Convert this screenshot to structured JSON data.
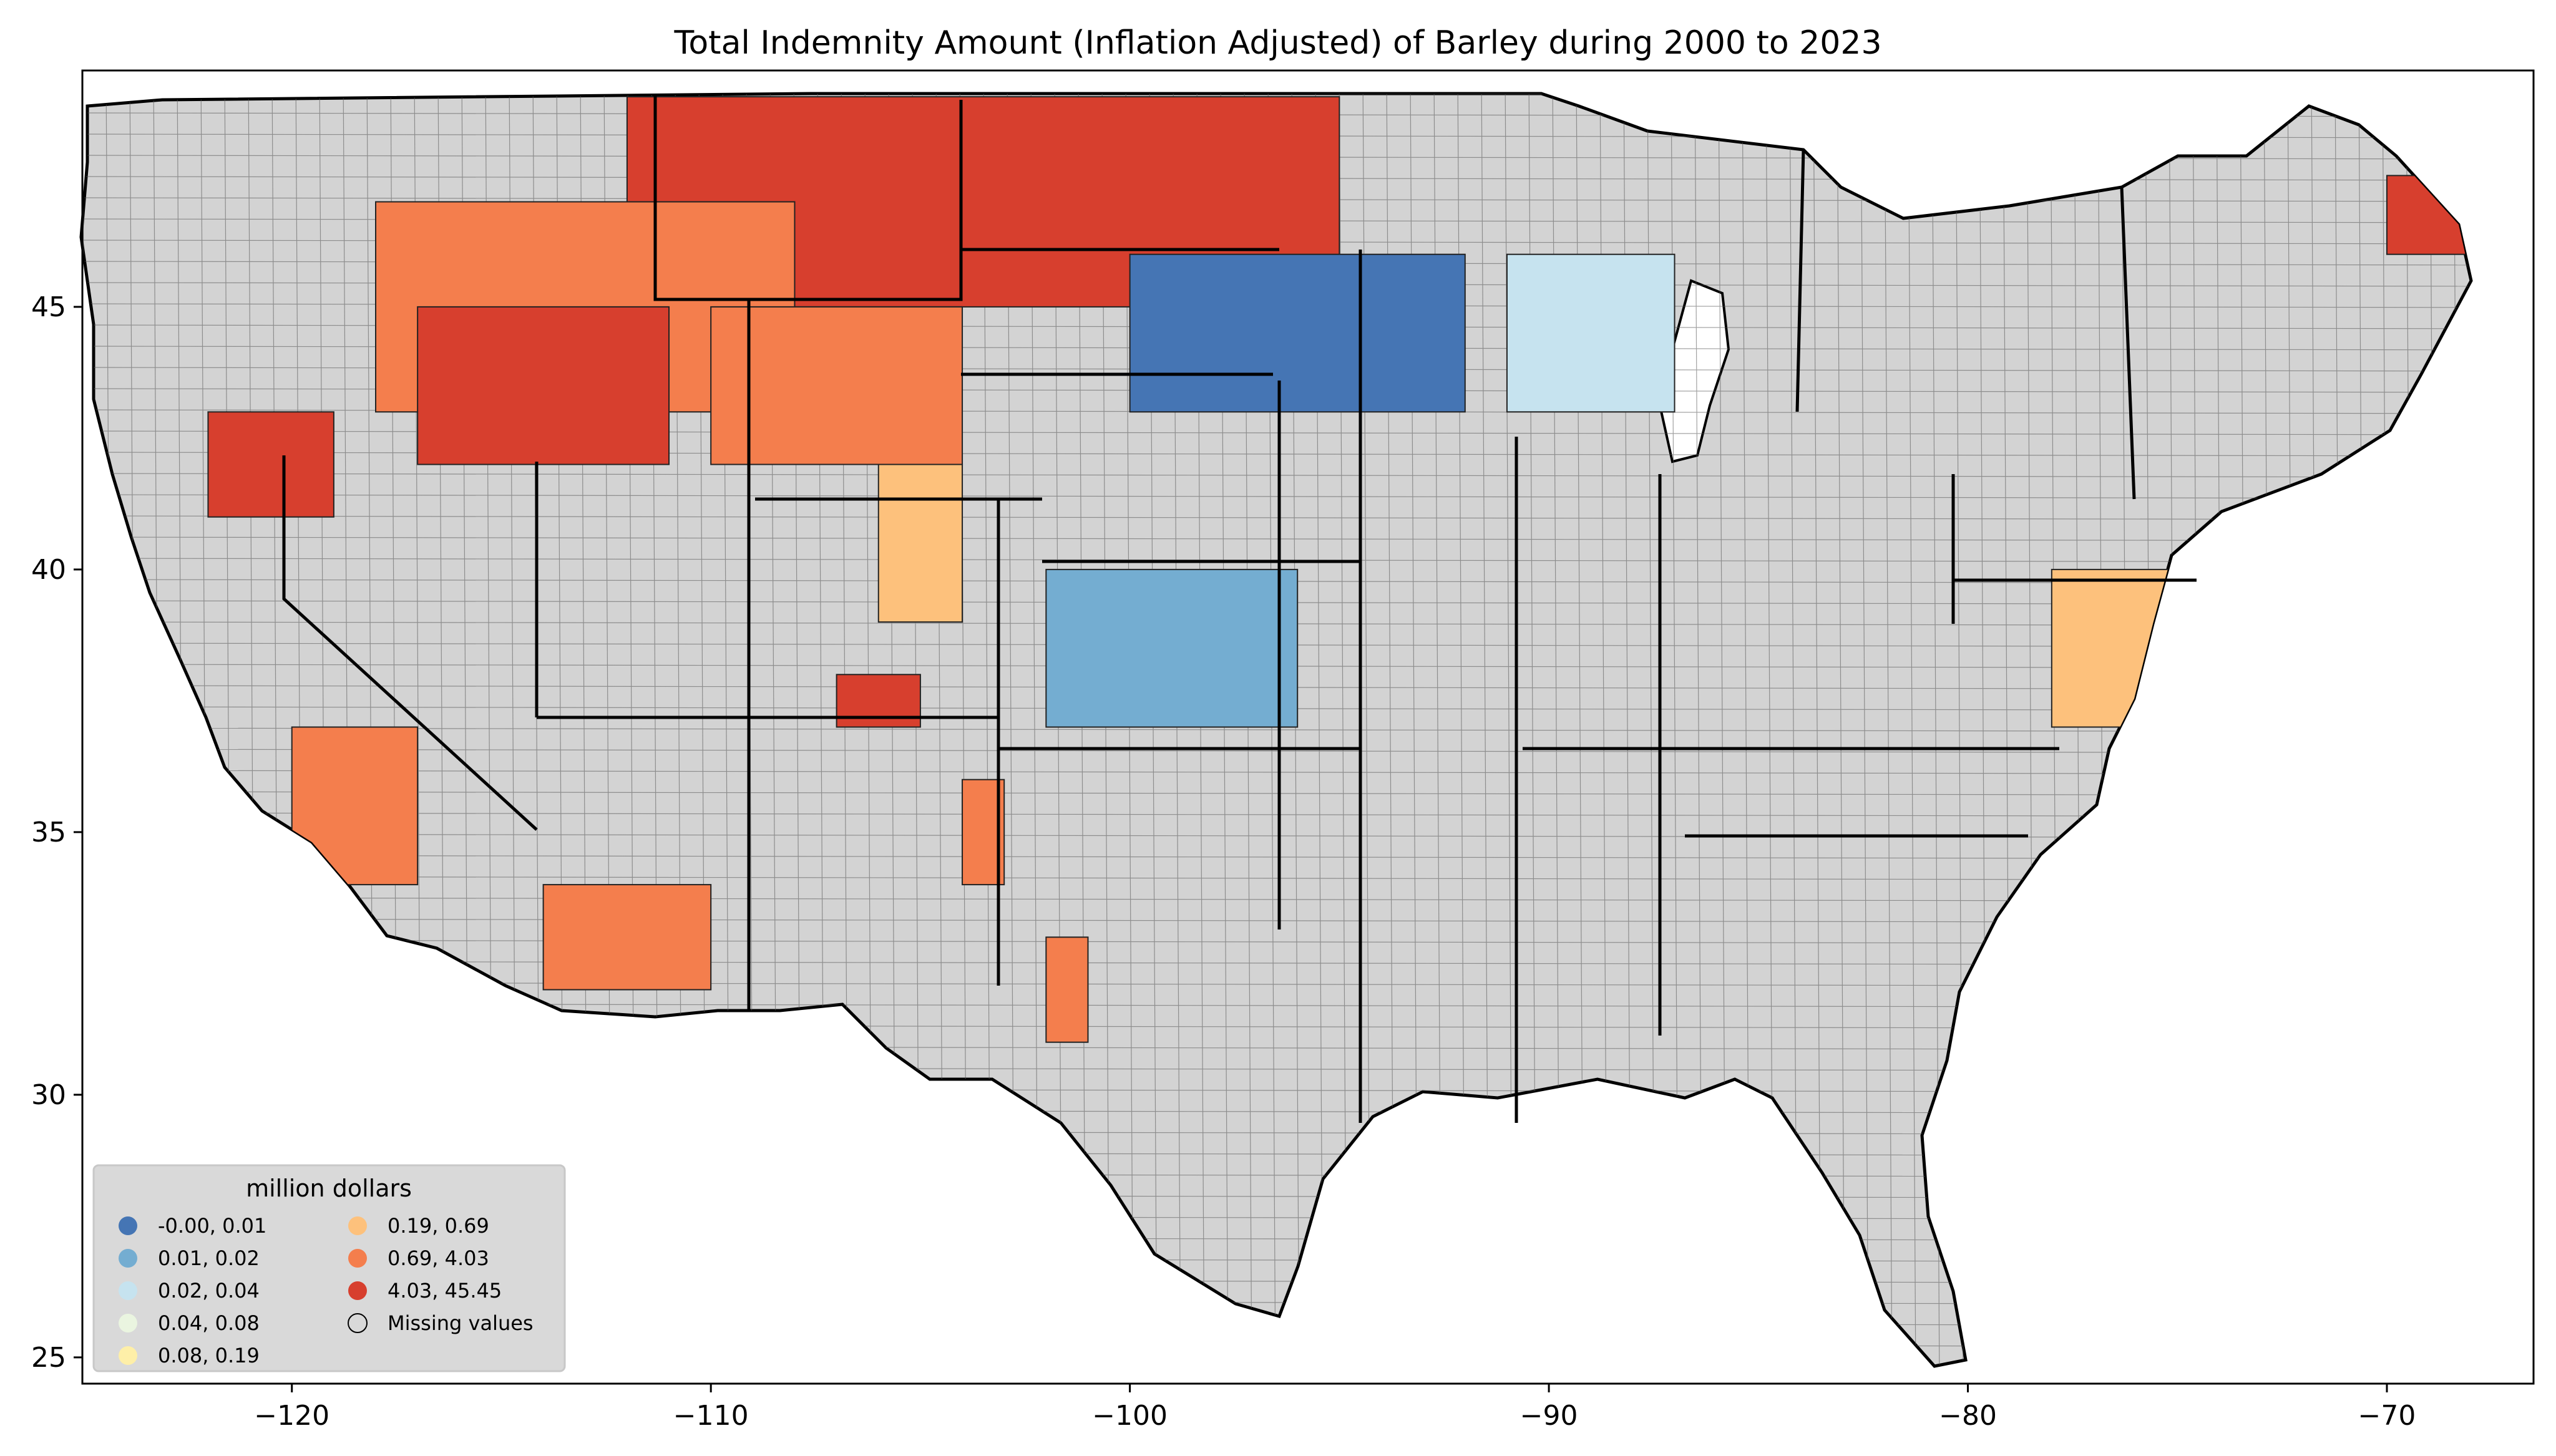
{
  "chart": {
    "title": "Total Indemnity Amount  (Inflation Adjusted) of Barley during 2000 to 2023"
  },
  "axes": {
    "x_ticks": [
      "−120",
      "−110",
      "−100",
      "−90",
      "−80",
      "−70"
    ],
    "y_ticks": [
      "25",
      "30",
      "35",
      "40",
      "45"
    ]
  },
  "legend": {
    "title": "million dollars",
    "items": [
      {
        "label": "-0.00,  0.01",
        "color": "#4575b4"
      },
      {
        "label": "0.01,  0.02",
        "color": "#74add1"
      },
      {
        "label": "0.02,  0.04",
        "color": "#c6e3ef"
      },
      {
        "label": "0.04,  0.08",
        "color": "#eaf5e0"
      },
      {
        "label": "0.08,  0.19",
        "color": "#feefa8"
      },
      {
        "label": "0.19,  0.69",
        "color": "#fdc17c"
      },
      {
        "label": "0.69,  4.03",
        "color": "#f47e4d"
      },
      {
        "label": "4.03, 45.45",
        "color": "#d73f2e"
      },
      {
        "label": "Missing values",
        "color": "#d3d3d3"
      }
    ]
  },
  "chart_data": {
    "type": "choropleth",
    "title": "Total Indemnity Amount  (Inflation Adjusted) of Barley during 2000 to 2023",
    "xlim": [
      -125,
      -66.5
    ],
    "ylim": [
      24.5,
      49.5
    ],
    "x_ticks": [
      -120,
      -110,
      -100,
      -90,
      -80,
      -70
    ],
    "y_ticks": [
      25,
      30,
      35,
      40,
      45
    ],
    "legend_title": "million dollars",
    "legend_placement": "lower-left",
    "classes": [
      {
        "range": [
          -0.0,
          0.01
        ],
        "color": "#4575b4"
      },
      {
        "range": [
          0.01,
          0.02
        ],
        "color": "#74add1"
      },
      {
        "range": [
          0.02,
          0.04
        ],
        "color": "#c6e3ef"
      },
      {
        "range": [
          0.04,
          0.08
        ],
        "color": "#eaf5e0"
      },
      {
        "range": [
          0.08,
          0.19
        ],
        "color": "#feefa8"
      },
      {
        "range": [
          0.19,
          0.69
        ],
        "color": "#fdc17c"
      },
      {
        "range": [
          0.69,
          4.03
        ],
        "color": "#f47e4d"
      },
      {
        "range": [
          4.03,
          45.45
        ],
        "color": "#d73f2e"
      }
    ],
    "missing_color": "#d3d3d3",
    "regions": [
      {
        "lon": [
          -112,
          -95
        ],
        "lat": [
          45,
          49
        ],
        "class": 7
      },
      {
        "lon": [
          -118,
          -108
        ],
        "lat": [
          43,
          47
        ],
        "class": 6
      },
      {
        "lon": [
          -117,
          -111
        ],
        "lat": [
          42,
          45
        ],
        "class": 7
      },
      {
        "lon": [
          -110,
          -104
        ],
        "lat": [
          42,
          45
        ],
        "class": 6
      },
      {
        "lon": [
          -106,
          -104
        ],
        "lat": [
          39,
          42
        ],
        "class": 5
      },
      {
        "lon": [
          -107,
          -105
        ],
        "lat": [
          37,
          38
        ],
        "class": 7
      },
      {
        "lon": [
          -122,
          -119
        ],
        "lat": [
          41,
          43
        ],
        "class": 7
      },
      {
        "lon": [
          -120,
          -117
        ],
        "lat": [
          34,
          37
        ],
        "class": 6
      },
      {
        "lon": [
          -114,
          -110
        ],
        "lat": [
          32,
          34
        ],
        "class": 6
      },
      {
        "lon": [
          -102,
          -96
        ],
        "lat": [
          37,
          40
        ],
        "class": 1
      },
      {
        "lon": [
          -100,
          -92
        ],
        "lat": [
          43,
          46
        ],
        "class": 0
      },
      {
        "lon": [
          -91,
          -87
        ],
        "lat": [
          43,
          46
        ],
        "class": 2
      },
      {
        "lon": [
          -78,
          -75
        ],
        "lat": [
          37,
          40
        ],
        "class": 5
      },
      {
        "lon": [
          -70,
          -68
        ],
        "lat": [
          46,
          47.5
        ],
        "class": 7
      },
      {
        "lon": [
          -104,
          -103
        ],
        "lat": [
          34,
          36
        ],
        "class": 6
      },
      {
        "lon": [
          -102,
          -101
        ],
        "lat": [
          31,
          33
        ],
        "class": 6
      }
    ]
  }
}
